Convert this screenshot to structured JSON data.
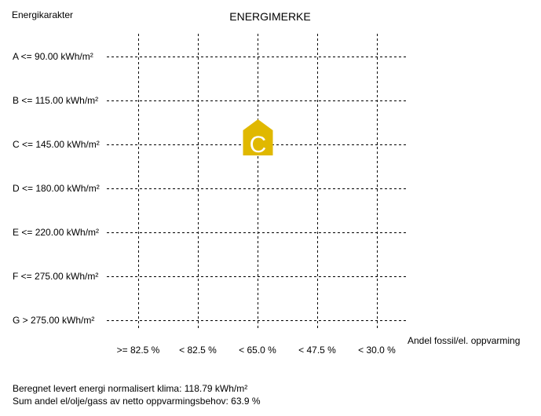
{
  "header": {
    "y_axis_title": "Energikarakter",
    "title": "ENERGIMERKE"
  },
  "chart_data": {
    "type": "scatter",
    "title": "ENERGIMERKE",
    "ylabel": "Energikarakter",
    "xlabel": "Andel fossil/el. oppvarming",
    "y_categories": [
      "A <= 90.00 kWh/m²",
      "B <= 115.00 kWh/m²",
      "C <= 145.00 kWh/m²",
      "D <= 180.00 kWh/m²",
      "E <= 220.00 kWh/m²",
      "F <= 275.00 kWh/m²",
      "G > 275.00 kWh/m²"
    ],
    "x_categories": [
      ">= 82.5 %",
      "< 82.5 %",
      "< 65.0 %",
      "< 47.5 %",
      "< 30.0 %"
    ],
    "grid": true,
    "marker": {
      "label": "C",
      "row": "C <= 145.00 kWh/m²",
      "column": "< 65.0 %",
      "color": "#e0b800"
    }
  },
  "footer": {
    "line1": "Beregnet levert energi normalisert klima: 118.79 kWh/m²",
    "line2": "Sum andel el/olje/gass av netto oppvarmingsbehov: 63.9 %"
  }
}
